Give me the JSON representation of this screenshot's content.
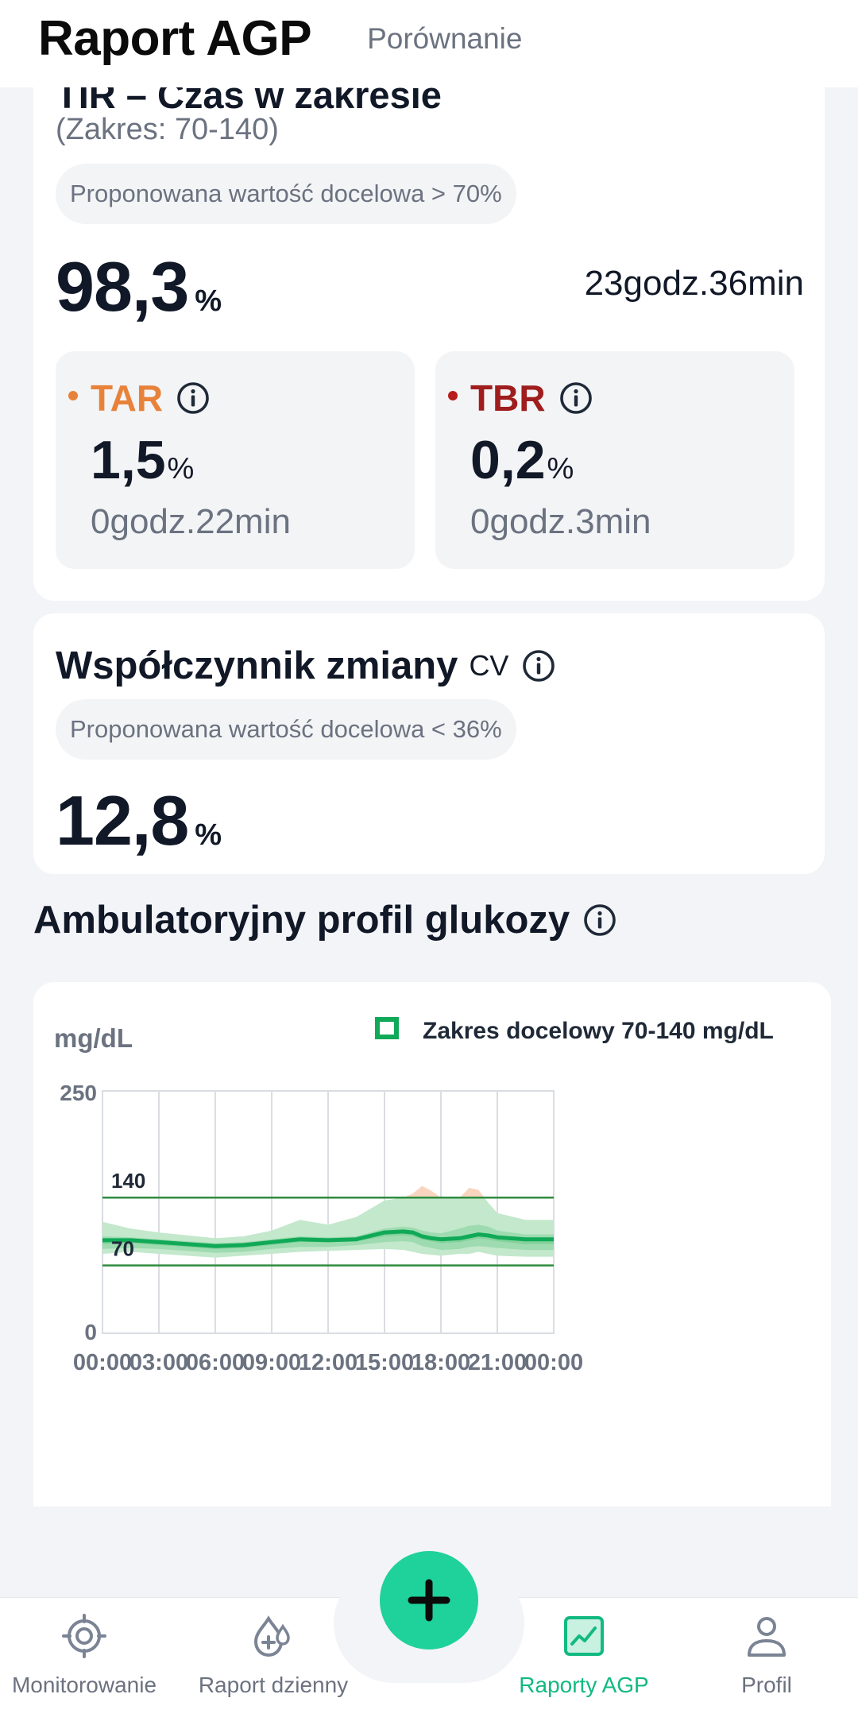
{
  "header": {
    "title": "Raport AGP",
    "compare_tab": "Porównanie"
  },
  "tir": {
    "partial_title": "TIR – Czas w zakresie",
    "range": "(Zakres: 70-140)",
    "target": "Proponowana wartość docelowa > 70%",
    "value": "98,3",
    "unit": "%",
    "time": "23godz.36min"
  },
  "tar": {
    "label": "TAR",
    "value": "1,5",
    "unit": "%",
    "time": "0godz.22min",
    "color": "#e8823a"
  },
  "tbr": {
    "label": "TBR",
    "value": "0,2",
    "unit": "%",
    "time": "0godz.3min",
    "color": "#b91c1c"
  },
  "cv": {
    "title": "Współczynnik zmiany",
    "abbr": "CV",
    "target": "Proponowana wartość docelowa < 36%",
    "value": "12,8",
    "unit": "%"
  },
  "agp": {
    "title": "Ambulatoryjny profil glukozy"
  },
  "chart_data": {
    "type": "area",
    "ylabel": "mg/dL",
    "legend": "Zakres docelowy 70-140 mg/dL",
    "legend_placement": "top-right",
    "ylim": [
      0,
      250
    ],
    "ytick_labels": [
      "250",
      "0"
    ],
    "target_lines": [
      140,
      70
    ],
    "target_labels": [
      "140",
      "70"
    ],
    "x_tick_labels": [
      "00:00",
      "03:00",
      "06:00",
      "09:00",
      "12:00",
      "15:00",
      "18:00",
      "21:00",
      "00:00"
    ],
    "x_hours": [
      0,
      1.5,
      3,
      4.5,
      6,
      7.5,
      9,
      10.5,
      12,
      13.5,
      15,
      16,
      16.5,
      17,
      17.5,
      18,
      19,
      19.5,
      20,
      20.5,
      21,
      22.5,
      24
    ],
    "series": [
      {
        "values": [
          96,
          96,
          94,
          92,
          90,
          91,
          94,
          97,
          96,
          97,
          104,
          105,
          104,
          100,
          98,
          97,
          98,
          100,
          102,
          101,
          99,
          97,
          97
        ]
      },
      {
        "values": [
          92,
          93,
          91,
          89,
          87,
          88,
          91,
          94,
          94,
          95,
          100,
          101,
          100,
          97,
          95,
          93,
          94,
          96,
          98,
          97,
          95,
          92,
          92
        ]
      },
      {
        "values": [
          100,
          99,
          97,
          95,
          93,
          94,
          97,
          100,
          99,
          100,
          108,
          110,
          109,
          106,
          104,
          103,
          108,
          111,
          112,
          110,
          106,
          102,
          102
        ]
      },
      {
        "values": [
          87,
          88,
          87,
          85,
          83,
          84,
          87,
          89,
          89,
          91,
          94,
          95,
          94,
          90,
          88,
          86,
          87,
          89,
          90,
          89,
          88,
          86,
          86
        ]
      },
      {
        "values": [
          115,
          108,
          104,
          101,
          98,
          100,
          106,
          117,
          112,
          120,
          137,
          140,
          144,
          152,
          147,
          140,
          140,
          150,
          148,
          135,
          124,
          117,
          117
        ]
      },
      {
        "values": [
          82,
          84,
          82,
          80,
          78,
          80,
          82,
          84,
          85,
          86,
          87,
          86,
          84,
          82,
          81,
          80,
          82,
          82,
          84,
          82,
          80,
          79,
          79
        ]
      }
    ],
    "colors": {
      "median": "#10a957",
      "inner_band": "#7fcf99",
      "outer_band": "#c3e8cc",
      "above_range": "#f9d5bf",
      "target_line": "#2e8b3f"
    }
  },
  "fab": {
    "icon": "plus-icon"
  },
  "nav": {
    "items": [
      {
        "label": "Monitorowanie",
        "icon": "monitor-target-icon"
      },
      {
        "label": "Raport dzienny",
        "icon": "daily-report-icon"
      },
      {
        "label": "Raporty AGP",
        "icon": "agp-chart-icon"
      },
      {
        "label": "Profil",
        "icon": "profile-icon"
      }
    ],
    "active_color": "#12b981"
  }
}
